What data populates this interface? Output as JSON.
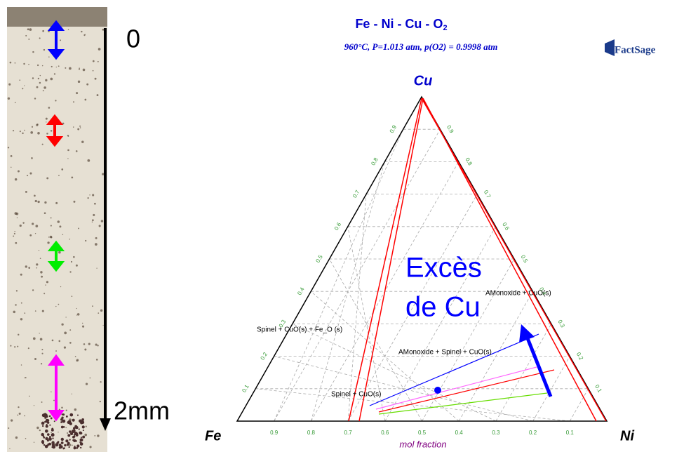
{
  "slide": {
    "scale_top": "0",
    "scale_bottom": "2mm",
    "excess_line1": "Excès",
    "excess_line2": "de Cu"
  },
  "diagram": {
    "title": "Fe - Ni - Cu - O",
    "title_sub": "2",
    "subtitle": "960°C,  P=1.013 atm,  p(O2) = 0.9998 atm",
    "logo": "FactSage",
    "apex_label": "Cu",
    "left_label": "Fe",
    "right_label": "Ni",
    "axis_label": "mol fraction",
    "bottom_ticks": [
      "0.9",
      "0.8",
      "0.7",
      "0.6",
      "0.5",
      "0.4",
      "0.3",
      "0.2",
      "0.1"
    ],
    "left_ticks": [
      "0.1",
      "0.2",
      "0.3",
      "0.4",
      "0.5",
      "0.6",
      "0.7",
      "0.8",
      "0.9"
    ],
    "right_ticks": [
      "0.9",
      "0.8",
      "0.7",
      "0.6",
      "0.5",
      "0.4",
      "0.3",
      "0.2",
      "0.1"
    ],
    "regions": [
      "AMonoxide + CuO(s)",
      "Spinel + CuO(s) + Fe_O (s)",
      "AMonoxide + Spinel + CuO(s)",
      "Spinel + CuO(s)"
    ]
  }
}
